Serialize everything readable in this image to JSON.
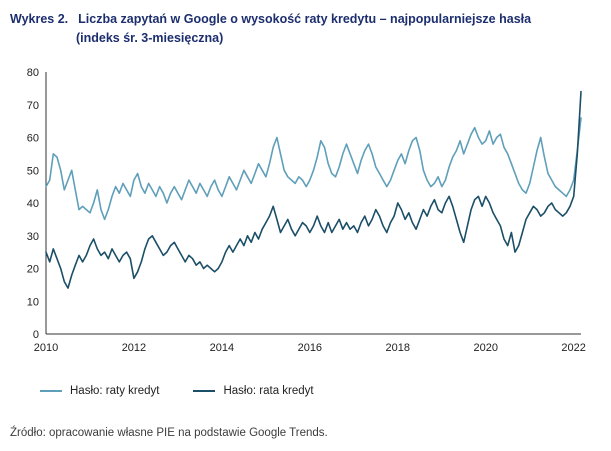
{
  "title": {
    "label": "Wykres 2.",
    "line1": "Liczba zapytań w Google o wysokość raty kredytu – najpopularniejsze hasła",
    "line2": "(indeks śr. 3-miesięczna)"
  },
  "legend": [
    {
      "label": "Hasło: raty kredyt",
      "color": "#5f9fba"
    },
    {
      "label": "Hasło: rata kredyt",
      "color": "#1b4f68"
    }
  ],
  "source": "Źródło: opracowanie własne PIE na podstawie Google Trends.",
  "chart_data": {
    "type": "line",
    "x_start_year": 2010,
    "x_frequency": "monthly",
    "xticks": [
      2010,
      2012,
      2014,
      2016,
      2018,
      2020,
      2022
    ],
    "ylim": [
      0,
      80
    ],
    "ytick_step": 10,
    "grid": false,
    "legend_position": "bottom",
    "axis_color": "#333333",
    "series": [
      {
        "name": "Hasło: raty kredyt",
        "color": "#5f9fba",
        "values": [
          45,
          47,
          55,
          54,
          50,
          44,
          47,
          50,
          44,
          38,
          39,
          38,
          37,
          40,
          44,
          38,
          35,
          38,
          42,
          45,
          43,
          46,
          44,
          42,
          47,
          49,
          45,
          43,
          46,
          44,
          42,
          45,
          43,
          40,
          43,
          45,
          43,
          41,
          44,
          47,
          45,
          43,
          46,
          44,
          42,
          45,
          47,
          44,
          42,
          45,
          48,
          46,
          44,
          47,
          50,
          48,
          46,
          49,
          52,
          50,
          48,
          52,
          57,
          60,
          55,
          50,
          48,
          47,
          46,
          48,
          47,
          45,
          47,
          50,
          54,
          59,
          57,
          52,
          49,
          48,
          51,
          55,
          58,
          55,
          52,
          49,
          53,
          56,
          58,
          55,
          51,
          49,
          47,
          45,
          47,
          50,
          53,
          55,
          52,
          56,
          59,
          60,
          56,
          50,
          47,
          45,
          46,
          48,
          45,
          47,
          51,
          54,
          56,
          59,
          55,
          58,
          61,
          63,
          60,
          58,
          59,
          62,
          58,
          60,
          61,
          57,
          55,
          52,
          49,
          46,
          44,
          43,
          46,
          51,
          56,
          60,
          54,
          49,
          47,
          45,
          44,
          43,
          42,
          44,
          47,
          56,
          66
        ]
      },
      {
        "name": "Hasło: rata kredyt",
        "color": "#1b4f68",
        "values": [
          25,
          22,
          26,
          23,
          20,
          16,
          14,
          18,
          21,
          24,
          22,
          24,
          27,
          29,
          26,
          24,
          25,
          23,
          26,
          24,
          22,
          24,
          25,
          23,
          17,
          19,
          22,
          26,
          29,
          30,
          28,
          26,
          24,
          25,
          27,
          28,
          26,
          24,
          22,
          24,
          23,
          21,
          22,
          20,
          21,
          20,
          19,
          20,
          22,
          25,
          27,
          25,
          27,
          29,
          27,
          30,
          28,
          31,
          29,
          32,
          34,
          36,
          39,
          35,
          31,
          33,
          35,
          32,
          30,
          32,
          34,
          33,
          31,
          33,
          36,
          33,
          31,
          34,
          31,
          33,
          35,
          32,
          34,
          32,
          33,
          31,
          34,
          36,
          33,
          35,
          38,
          36,
          33,
          31,
          34,
          36,
          40,
          38,
          35,
          37,
          34,
          32,
          35,
          38,
          36,
          39,
          41,
          38,
          37,
          40,
          42,
          39,
          35,
          31,
          28,
          33,
          38,
          41,
          42,
          39,
          42,
          40,
          37,
          35,
          33,
          29,
          27,
          31,
          25,
          27,
          31,
          35,
          37,
          39,
          38,
          36,
          37,
          39,
          40,
          38,
          37,
          36,
          37,
          39,
          42,
          55,
          74
        ]
      }
    ]
  }
}
